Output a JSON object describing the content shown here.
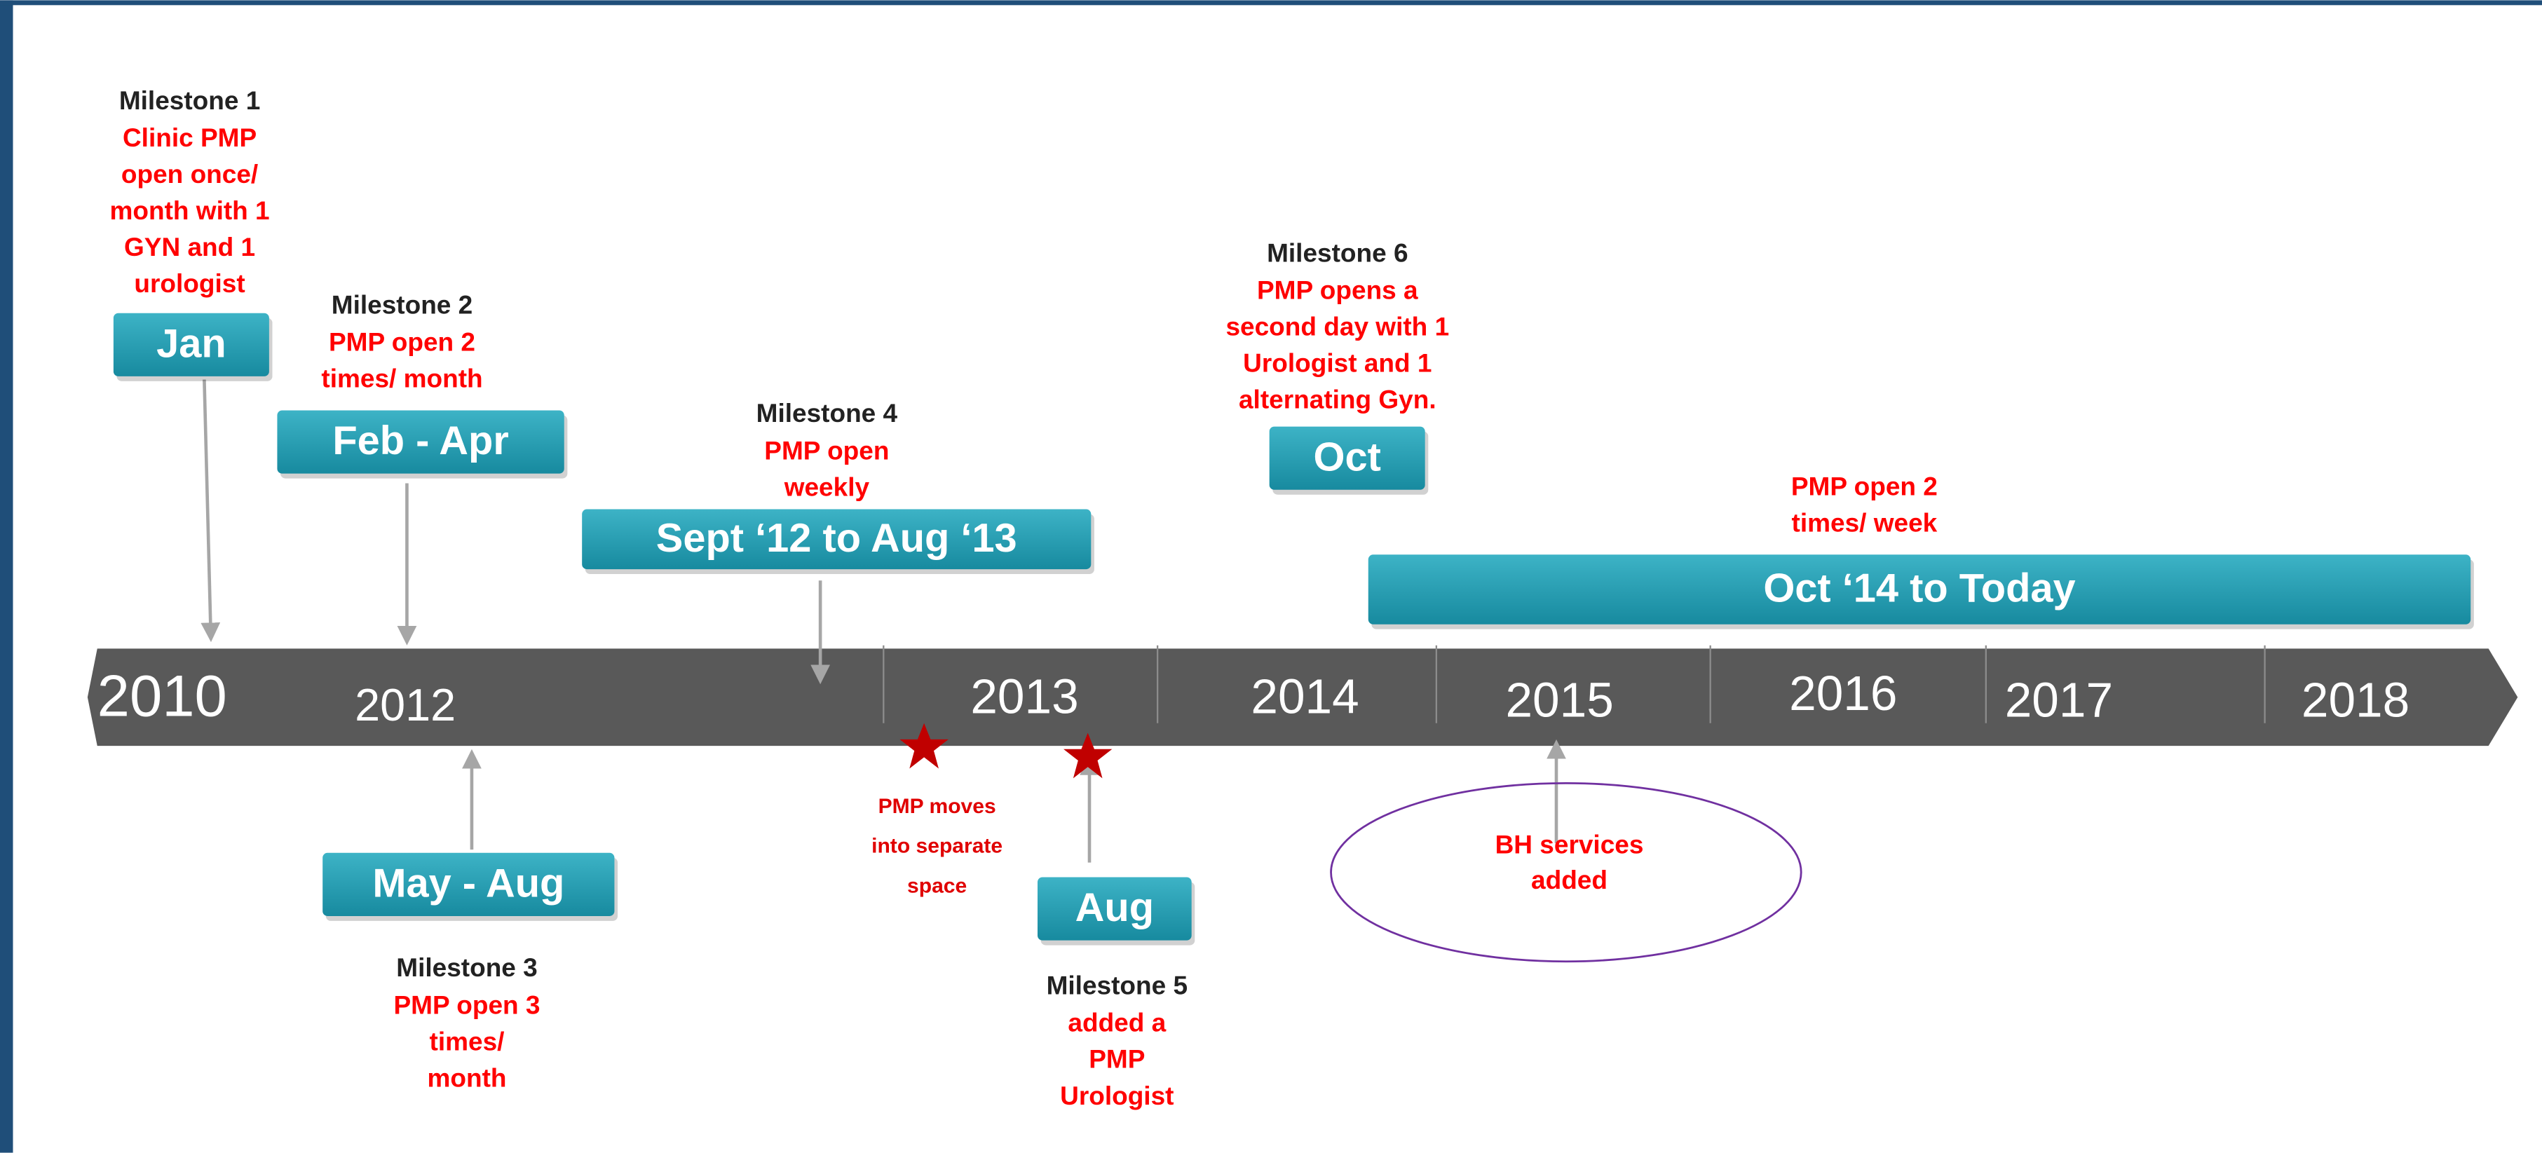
{
  "years": [
    "2010",
    "2012",
    "2013",
    "2014",
    "2015",
    "2016",
    "2017",
    "2018"
  ],
  "periods": [
    "Jan",
    "Feb - Apr",
    "Sept ‘12 to Aug ‘13",
    "Oct",
    "Oct ‘14 to Today",
    "May - Aug",
    "Aug"
  ],
  "milestones": [
    {
      "title": "Milestone 1",
      "lines": [
        "Clinic PMP",
        "open once/",
        "month with 1",
        "GYN and 1",
        "urologist"
      ]
    },
    {
      "title": "Milestone 2",
      "lines": [
        "PMP open 2",
        "times/ month"
      ]
    },
    {
      "title": "Milestone 4",
      "lines": [
        "PMP open",
        "weekly"
      ]
    },
    {
      "title": "Milestone 6",
      "lines": [
        "PMP opens a",
        "second day with 1",
        "Urologist and 1",
        "alternating Gyn."
      ]
    },
    {
      "lines": [
        "PMP open 2",
        "times/ week"
      ]
    },
    {
      "title": "Milestone 3",
      "lines": [
        "PMP open 3",
        "times/",
        "month"
      ]
    },
    {
      "title": "Milestone 5",
      "lines": [
        "added a",
        "PMP",
        "Urologist"
      ]
    }
  ],
  "notes": [
    {
      "lines": [
        "PMP moves",
        "into separate",
        "space"
      ]
    },
    {
      "lines": [
        "BH services",
        "added"
      ]
    }
  ]
}
